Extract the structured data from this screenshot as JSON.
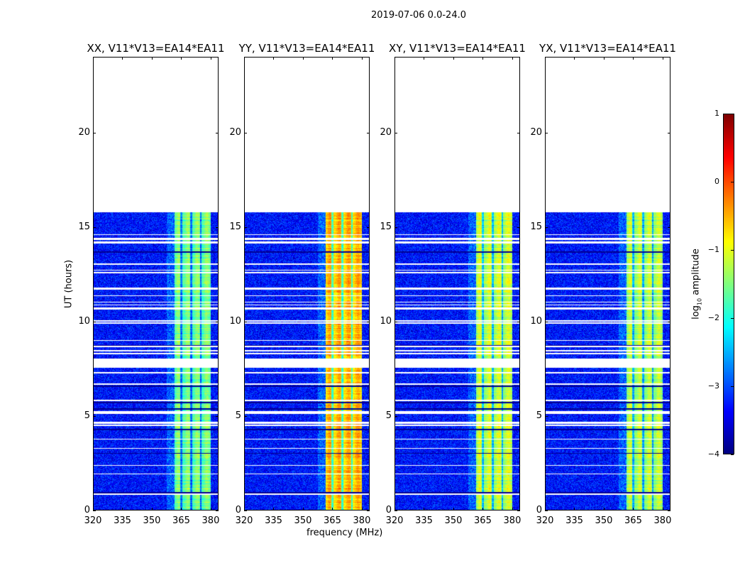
{
  "chart_data": {
    "type": "heatmap",
    "title": "2019-07-06 0.0-24.0",
    "xlabel": "frequency (MHz)",
    "ylabel": "UT (hours)",
    "xlim": [
      320,
      384
    ],
    "ylim": [
      0,
      24
    ],
    "xticks": [
      "320",
      "335",
      "350",
      "365",
      "380"
    ],
    "xtick_values": [
      320,
      335,
      350,
      365,
      380
    ],
    "yticks": [
      "0",
      "5",
      "10",
      "15",
      "20"
    ],
    "ytick_values": [
      0,
      5,
      10,
      15,
      20
    ],
    "data_time_range": [
      0,
      15.8
    ],
    "gap_hours": [
      [
        7.55,
        8.0
      ]
    ],
    "band_mhz": [
      361.5,
      380
    ],
    "band_dark_stripes_mhz": [
      365,
      370,
      375
    ],
    "background_log_amplitude": -3.3,
    "panels": [
      {
        "title": "XX, V11*V13=EA14*EA11",
        "band_level": -1.6
      },
      {
        "title": "YY, V11*V13=EA14*EA11",
        "band_level": -0.6
      },
      {
        "title": "XY, V11*V13=EA14*EA11",
        "band_level": -1.2
      },
      {
        "title": "YX, V11*V13=EA14*EA11",
        "band_level": -1.3
      }
    ],
    "colorbar": {
      "label": "log10 amplitude",
      "label_main": "log",
      "label_sub": "10",
      "label_rest": " amplitude",
      "range": [
        -4,
        1
      ],
      "ticks": [
        "1",
        "0",
        "−1",
        "−2",
        "−3",
        "−4"
      ],
      "tick_values": [
        1,
        0,
        -1,
        -2,
        -3,
        -4
      ],
      "colormap": "jet"
    }
  }
}
